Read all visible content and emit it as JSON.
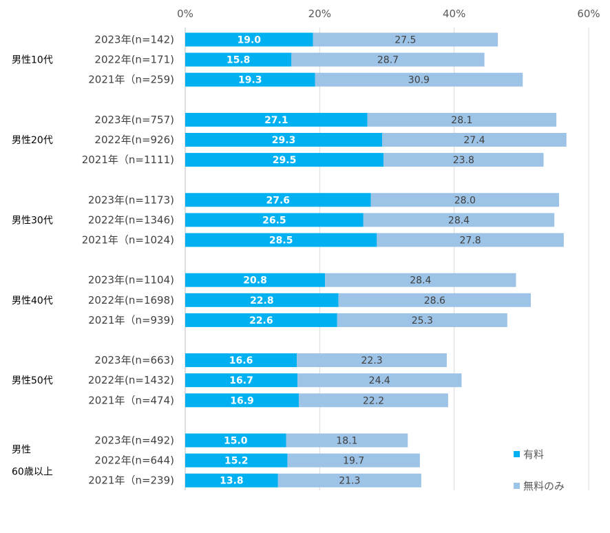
{
  "chart_data": {
    "type": "bar",
    "orientation": "horizontal",
    "stacked": true,
    "xlim": [
      0,
      60
    ],
    "x_ticks": [
      "0%",
      "20%",
      "40%",
      "60%"
    ],
    "grid": true,
    "legend_position": "bottom-right",
    "colors": {
      "paid": "#00b0f0",
      "free": "#9dc3e6",
      "grid": "#d9d9d9"
    },
    "series": [
      {
        "key": "paid",
        "name": "有料"
      },
      {
        "key": "free",
        "name": "無料のみ"
      }
    ],
    "groups": [
      {
        "label": [
          "男性10代"
        ],
        "rows": [
          {
            "label": "2023年(n=142)",
            "paid": 19.0,
            "free": 27.5,
            "paid_text": "19.0",
            "free_text": "27.5"
          },
          {
            "label": "2022年(n=171)",
            "paid": 15.8,
            "free": 28.7,
            "paid_text": "15.8",
            "free_text": "28.7"
          },
          {
            "label": "2021年（n=259)",
            "paid": 19.3,
            "free": 30.9,
            "paid_text": "19.3",
            "free_text": "30.9"
          }
        ]
      },
      {
        "label": [
          "男性20代"
        ],
        "rows": [
          {
            "label": "2023年(n=757)",
            "paid": 27.1,
            "free": 28.1,
            "paid_text": "27.1",
            "free_text": "28.1"
          },
          {
            "label": "2022年(n=926)",
            "paid": 29.3,
            "free": 27.4,
            "paid_text": "29.3",
            "free_text": "27.4"
          },
          {
            "label": "2021年（n=1111)",
            "paid": 29.5,
            "free": 23.8,
            "paid_text": "29.5",
            "free_text": "23.8"
          }
        ]
      },
      {
        "label": [
          "男性30代"
        ],
        "rows": [
          {
            "label": "2023年(n=1173)",
            "paid": 27.6,
            "free": 28.0,
            "paid_text": "27.6",
            "free_text": "28.0"
          },
          {
            "label": "2022年(n=1346)",
            "paid": 26.5,
            "free": 28.4,
            "paid_text": "26.5",
            "free_text": "28.4"
          },
          {
            "label": "2021年（n=1024)",
            "paid": 28.5,
            "free": 27.8,
            "paid_text": "28.5",
            "free_text": "27.8"
          }
        ]
      },
      {
        "label": [
          "男性40代"
        ],
        "rows": [
          {
            "label": "2023年(n=1104)",
            "paid": 20.8,
            "free": 28.4,
            "paid_text": "20.8",
            "free_text": "28.4"
          },
          {
            "label": "2022年(n=1698)",
            "paid": 22.8,
            "free": 28.6,
            "paid_text": "22.8",
            "free_text": "28.6"
          },
          {
            "label": "2021年（n=939)",
            "paid": 22.6,
            "free": 25.3,
            "paid_text": "22.6",
            "free_text": "25.3"
          }
        ]
      },
      {
        "label": [
          "男性50代"
        ],
        "rows": [
          {
            "label": "2023年(n=663)",
            "paid": 16.6,
            "free": 22.3,
            "paid_text": "16.6",
            "free_text": "22.3"
          },
          {
            "label": "2022年(n=1432)",
            "paid": 16.7,
            "free": 24.4,
            "paid_text": "16.7",
            "free_text": "24.4"
          },
          {
            "label": "2021年（n=474)",
            "paid": 16.9,
            "free": 22.2,
            "paid_text": "16.9",
            "free_text": "22.2"
          }
        ]
      },
      {
        "label": [
          "男性",
          "60歳以上"
        ],
        "rows": [
          {
            "label": "2023年(n=492)",
            "paid": 15.0,
            "free": 18.1,
            "paid_text": "15.0",
            "free_text": "18.1"
          },
          {
            "label": "2022年(n=644)",
            "paid": 15.2,
            "free": 19.7,
            "paid_text": "15.2",
            "free_text": "19.7"
          },
          {
            "label": "2021年（n=239)",
            "paid": 13.8,
            "free": 21.3,
            "paid_text": "13.8",
            "free_text": "21.3"
          }
        ]
      }
    ]
  }
}
